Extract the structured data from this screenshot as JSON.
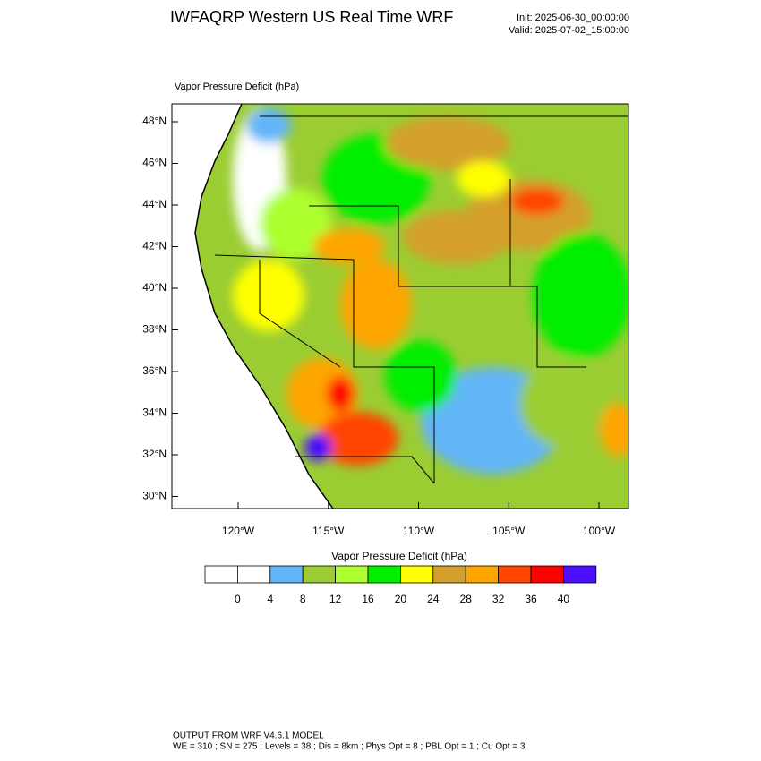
{
  "header": {
    "title": "IWFAQRP Western US Real Time WRF",
    "init": "Init: 2025-06-30_00:00:00",
    "valid": "Valid: 2025-07-02_15:00:00"
  },
  "plot": {
    "label": "Vapor Pressure Deficit   (hPa)",
    "lat_ticks": [
      {
        "value": 48,
        "label": "48°N"
      },
      {
        "value": 46,
        "label": "46°N"
      },
      {
        "value": 44,
        "label": "44°N"
      },
      {
        "value": 42,
        "label": "42°N"
      },
      {
        "value": 40,
        "label": "40°N"
      },
      {
        "value": 38,
        "label": "38°N"
      },
      {
        "value": 36,
        "label": "36°N"
      },
      {
        "value": 34,
        "label": "34°N"
      },
      {
        "value": 32,
        "label": "32°N"
      },
      {
        "value": 30,
        "label": "30°N"
      }
    ],
    "lon_ticks": [
      {
        "value": -120,
        "label": "120°W"
      },
      {
        "value": -115,
        "label": "115°W"
      },
      {
        "value": -110,
        "label": "110°W"
      },
      {
        "value": -105,
        "label": "105°W"
      },
      {
        "value": -100,
        "label": "100°W"
      }
    ]
  },
  "colorbar": {
    "title": "Vapor Pressure Deficit  (hPa)",
    "colors": [
      "#ffffff",
      "#ffffff",
      "#62b6f8",
      "#9acd32",
      "#adff2f",
      "#00ee00",
      "#ffff00",
      "#d4a02c",
      "#ffa500",
      "#ff4500",
      "#ff0000",
      "#4a10ff"
    ],
    "levels": [
      0,
      4,
      8,
      12,
      16,
      20,
      24,
      28,
      32,
      36,
      40
    ]
  },
  "footer": {
    "lines": [
      "OUTPUT FROM WRF V4.6.1 MODEL",
      "WE = 310 ; SN = 275 ; Levels = 38 ; Dis = 8km ; Phys Opt = 8 ; PBL Opt = 1 ; Cu Opt = 3"
    ]
  }
}
